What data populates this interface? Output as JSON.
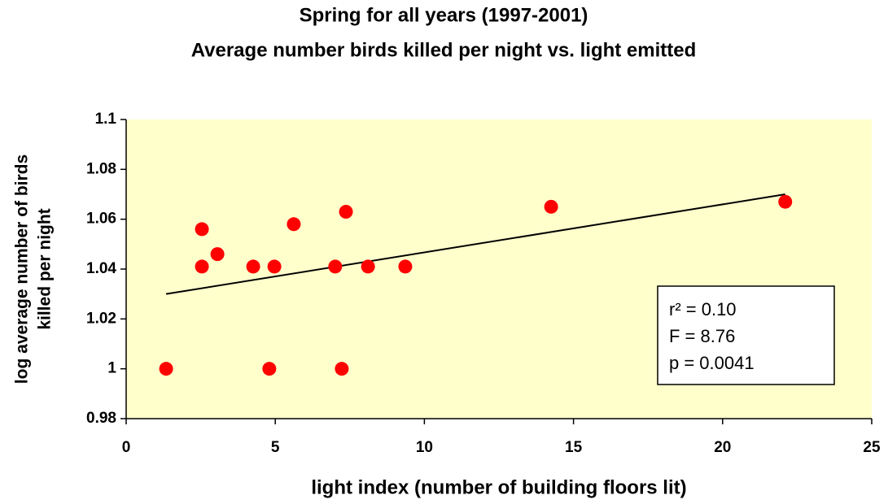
{
  "chart_data": {
    "type": "scatter",
    "title": [
      "Spring for all years (1997-2001)",
      "Average number birds killed per night vs. light emitted"
    ],
    "xlabel": "light index (number of building floors lit)",
    "ylabel": [
      "log average number of birds",
      "killed per night"
    ],
    "x": [
      1.34,
      2.54,
      2.54,
      3.06,
      4.26,
      4.8,
      4.97,
      5.62,
      7.01,
      7.23,
      7.37,
      8.11,
      9.36,
      14.25,
      22.1
    ],
    "values": [
      1.0,
      1.056,
      1.041,
      1.046,
      1.041,
      1.0,
      1.041,
      1.058,
      1.041,
      1.0,
      1.063,
      1.041,
      1.041,
      1.065,
      1.067
    ],
    "color": "#ff0000",
    "trendline": {
      "x": [
        1.34,
        22.1
      ],
      "y": [
        1.03,
        1.07
      ]
    },
    "annotation": [
      "r² = 0.10",
      "F = 8.76",
      "p = 0.0041"
    ],
    "xlim": [
      0,
      25
    ],
    "xticks": [
      0,
      5,
      10,
      15,
      20,
      25
    ],
    "ylim": [
      0.98,
      1.1
    ],
    "yticks": [
      0.98,
      1,
      1.02,
      1.04,
      1.06,
      1.08,
      1.1
    ],
    "background": "#ffffcc",
    "grid": false
  }
}
